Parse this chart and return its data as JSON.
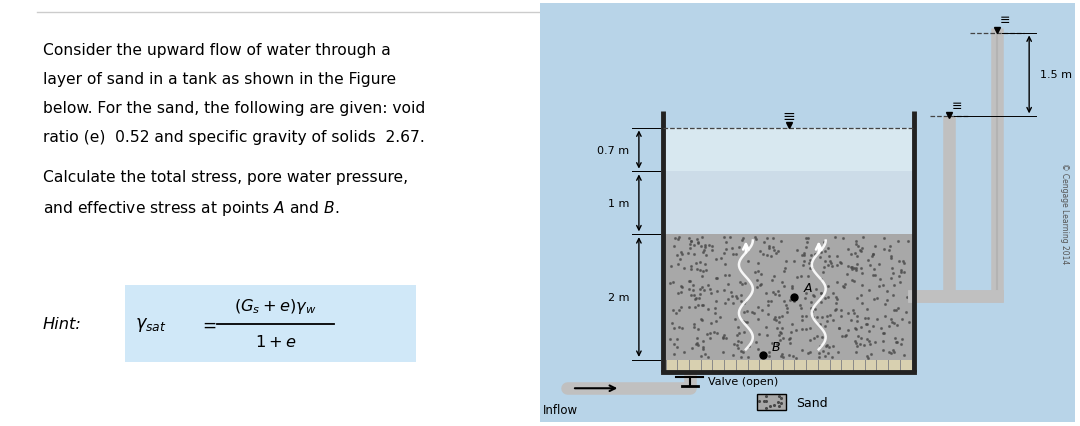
{
  "bg_color": "#ffffff",
  "light_blue_bg": "#b8d4e8",
  "text_color": "#000000",
  "title_lines": [
    "Consider the upward flow of water through a",
    "layer of sand in a tank as shown in the Figure",
    "below. For the sand, the following are given: void",
    "ratio (e)  0.52 and specific gravity of solids  2.67."
  ],
  "calc_lines": [
    "Calculate the total stress, pore water pressure,",
    "and effective stress at points A and B."
  ],
  "dim_07": "0.7 m",
  "dim_1": "1 m",
  "dim_2": "2 m",
  "dim_15": "1.5 m",
  "label_A": "A",
  "label_B": "B",
  "label_inflow": "Inflow",
  "label_valve": "Valve (open)",
  "label_sand": "Sand",
  "copyright": "© Cengage Learning 2014",
  "sand_color": "#a8a8a8",
  "filter_color": "#d8d0b0",
  "water_light": "#ccdce8",
  "water_upper": "#d8e8f0",
  "pipe_color": "#c0c0c0",
  "pipe_dark": "#a0a0a0",
  "tank_wall_color": "#222222",
  "hint_box_color": "#d0e8f8"
}
